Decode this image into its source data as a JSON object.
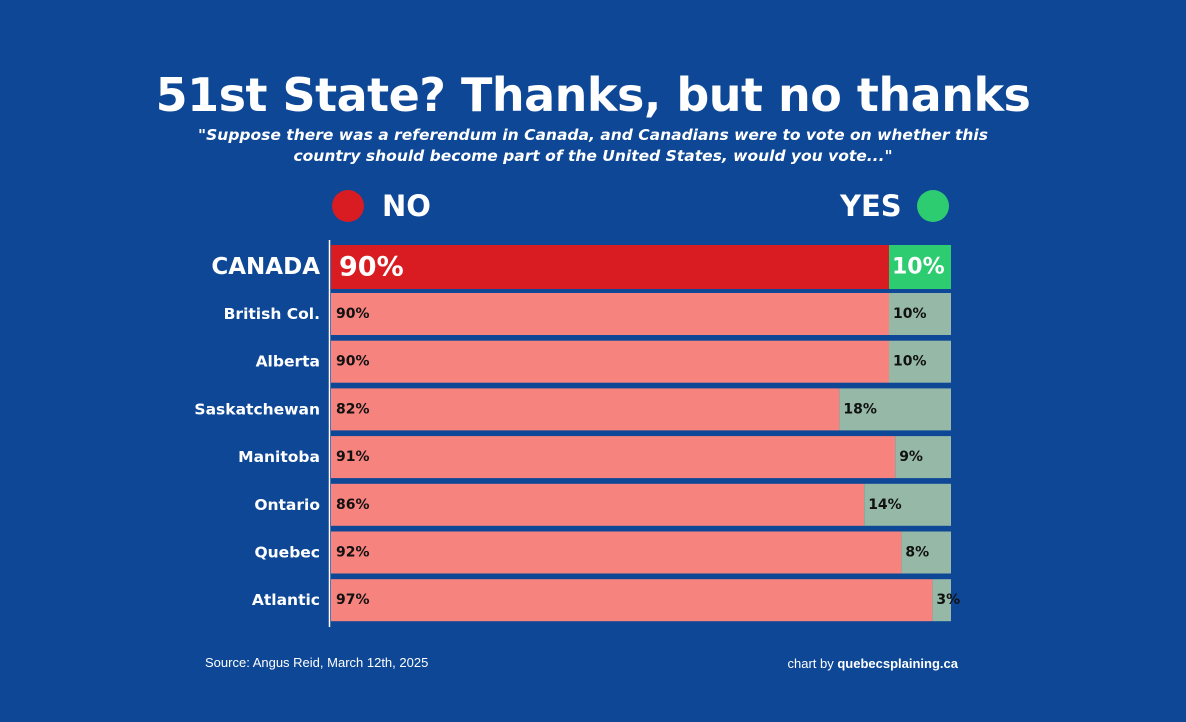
{
  "title": "51st State? Thanks, but no thanks",
  "subtitle": "\"Suppose there was a referendum in Canada, and Canadians were to vote on whether this country should become part of the United States, would you vote...\"",
  "legend": {
    "no_label": "NO",
    "yes_label": "YES"
  },
  "colors": {
    "background": "#0d4796",
    "no_main": "#d81c22",
    "yes_main": "#2ecc71",
    "no_region": "#f7837f",
    "yes_region": "#95b9a6"
  },
  "chart_data": {
    "type": "bar",
    "orientation": "horizontal-stacked-100",
    "categories": [
      "CANADA",
      "British Col.",
      "Alberta",
      "Saskatchewan",
      "Manitoba",
      "Ontario",
      "Quebec",
      "Atlantic"
    ],
    "series": [
      {
        "name": "NO",
        "values": [
          90,
          90,
          90,
          82,
          91,
          86,
          92,
          97
        ]
      },
      {
        "name": "YES",
        "values": [
          10,
          10,
          10,
          18,
          9,
          14,
          8,
          3
        ]
      }
    ],
    "value_suffix": "%",
    "xlim": [
      0,
      100
    ]
  },
  "footer": {
    "source": "Source: Angus Reid, March 12th, 2025",
    "credit_prefix": "chart by ",
    "credit_site": "quebecsplaining.ca"
  }
}
